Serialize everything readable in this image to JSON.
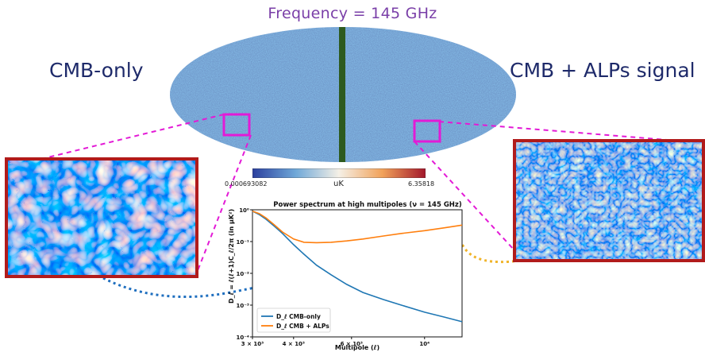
{
  "frequency_title": "Frequency = 145 GHz",
  "labels": {
    "left": "CMB-only",
    "right": "CMB + ALPs signal"
  },
  "colorbar": {
    "min_label": "0.000693082",
    "max_label": "6.35818",
    "unit": "uK"
  },
  "colors": {
    "title_purple": "#7a3fa8",
    "label_navy": "#1e2a6a",
    "zoom_border": "#b11b1b",
    "connector_magenta": "#e31ad6",
    "arrow_blue": "#1f6fbf",
    "arrow_gold": "#f0b42a",
    "galactic_band": "#2d5a1f"
  },
  "chart_data": {
    "type": "line",
    "title": "Power spectrum at high multipoles (ν = 145 GHz)",
    "xlabel": "Multipole (ℓ)",
    "ylabel": "D_ℓ = ℓ(ℓ+1)C_ℓ/2π (in μK²)",
    "x_scale": "log",
    "y_scale": "log",
    "xlim": [
      3000,
      13000
    ],
    "ylim": [
      0.0001,
      1
    ],
    "x_ticks": [
      {
        "value": 3000,
        "label": "3 × 10³"
      },
      {
        "value": 4000,
        "label": "4 × 10³"
      },
      {
        "value": 6000,
        "label": "6 × 10³"
      },
      {
        "value": 10000,
        "label": "10⁴"
      }
    ],
    "y_ticks": [
      {
        "value": 1,
        "label": "10⁰"
      },
      {
        "value": 0.1,
        "label": "10⁻¹"
      },
      {
        "value": 0.01,
        "label": "10⁻²"
      },
      {
        "value": 0.001,
        "label": "10⁻³"
      },
      {
        "value": 0.0001,
        "label": "10⁻⁴"
      }
    ],
    "legend_position": "lower-left",
    "series": [
      {
        "name": "D_ℓ CMB-only",
        "color": "#1f77b4",
        "x": [
          3000,
          3150,
          3300,
          3500,
          3700,
          4000,
          4300,
          4700,
          5200,
          5800,
          6500,
          7500,
          8500,
          10000,
          11500,
          13000
        ],
        "y": [
          0.9,
          0.7,
          0.5,
          0.3,
          0.18,
          0.08,
          0.04,
          0.018,
          0.009,
          0.0045,
          0.0025,
          0.0015,
          0.001,
          0.0006,
          0.00042,
          0.0003
        ]
      },
      {
        "name": "D_ℓ CMB + ALPs",
        "color": "#ff7f0e",
        "x": [
          3000,
          3150,
          3300,
          3500,
          3700,
          4000,
          4300,
          4700,
          5200,
          5800,
          6500,
          7500,
          8500,
          10000,
          11500,
          13000
        ],
        "y": [
          0.9,
          0.75,
          0.55,
          0.33,
          0.2,
          0.12,
          0.095,
          0.092,
          0.095,
          0.105,
          0.12,
          0.15,
          0.18,
          0.22,
          0.27,
          0.33
        ]
      }
    ]
  }
}
